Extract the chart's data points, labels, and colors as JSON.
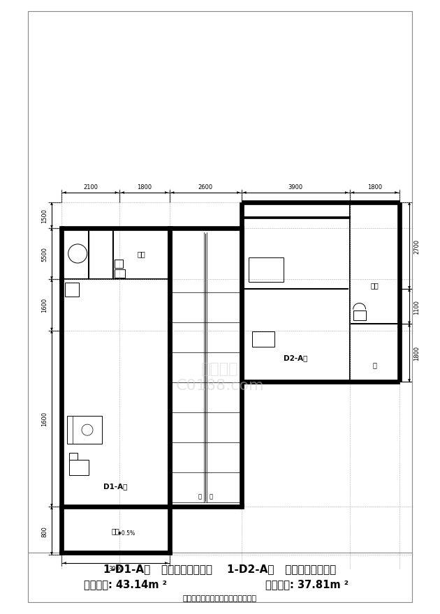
{
  "bg_color": "#ffffff",
  "line_color": "#000000",
  "thick_lw": 4.5,
  "thin_lw": 0.8,
  "mid_lw": 1.5,
  "fig_width": 6.1,
  "fig_height": 8.61,
  "title_line1": "1-D1-A型   一房一厅一卫一厨    1-D2-A型   一房一厅一卫一厨",
  "title_line2_left": "建筑面积: 43.14m",
  "title_line2_right": "建筑面积: 37.81m",
  "title_line3": "户型面积以房地局核定产权面积为准",
  "watermark": "土木在线\nC0188.com",
  "dim_top": [
    "2100",
    "1800",
    "2600",
    "3900",
    "1800"
  ],
  "dim_left": [
    "800",
    "1600",
    "1600",
    "5500",
    "1500"
  ],
  "dim_right": [
    "2700",
    "1100",
    "1800"
  ],
  "dim_bottom": [
    "3900"
  ]
}
